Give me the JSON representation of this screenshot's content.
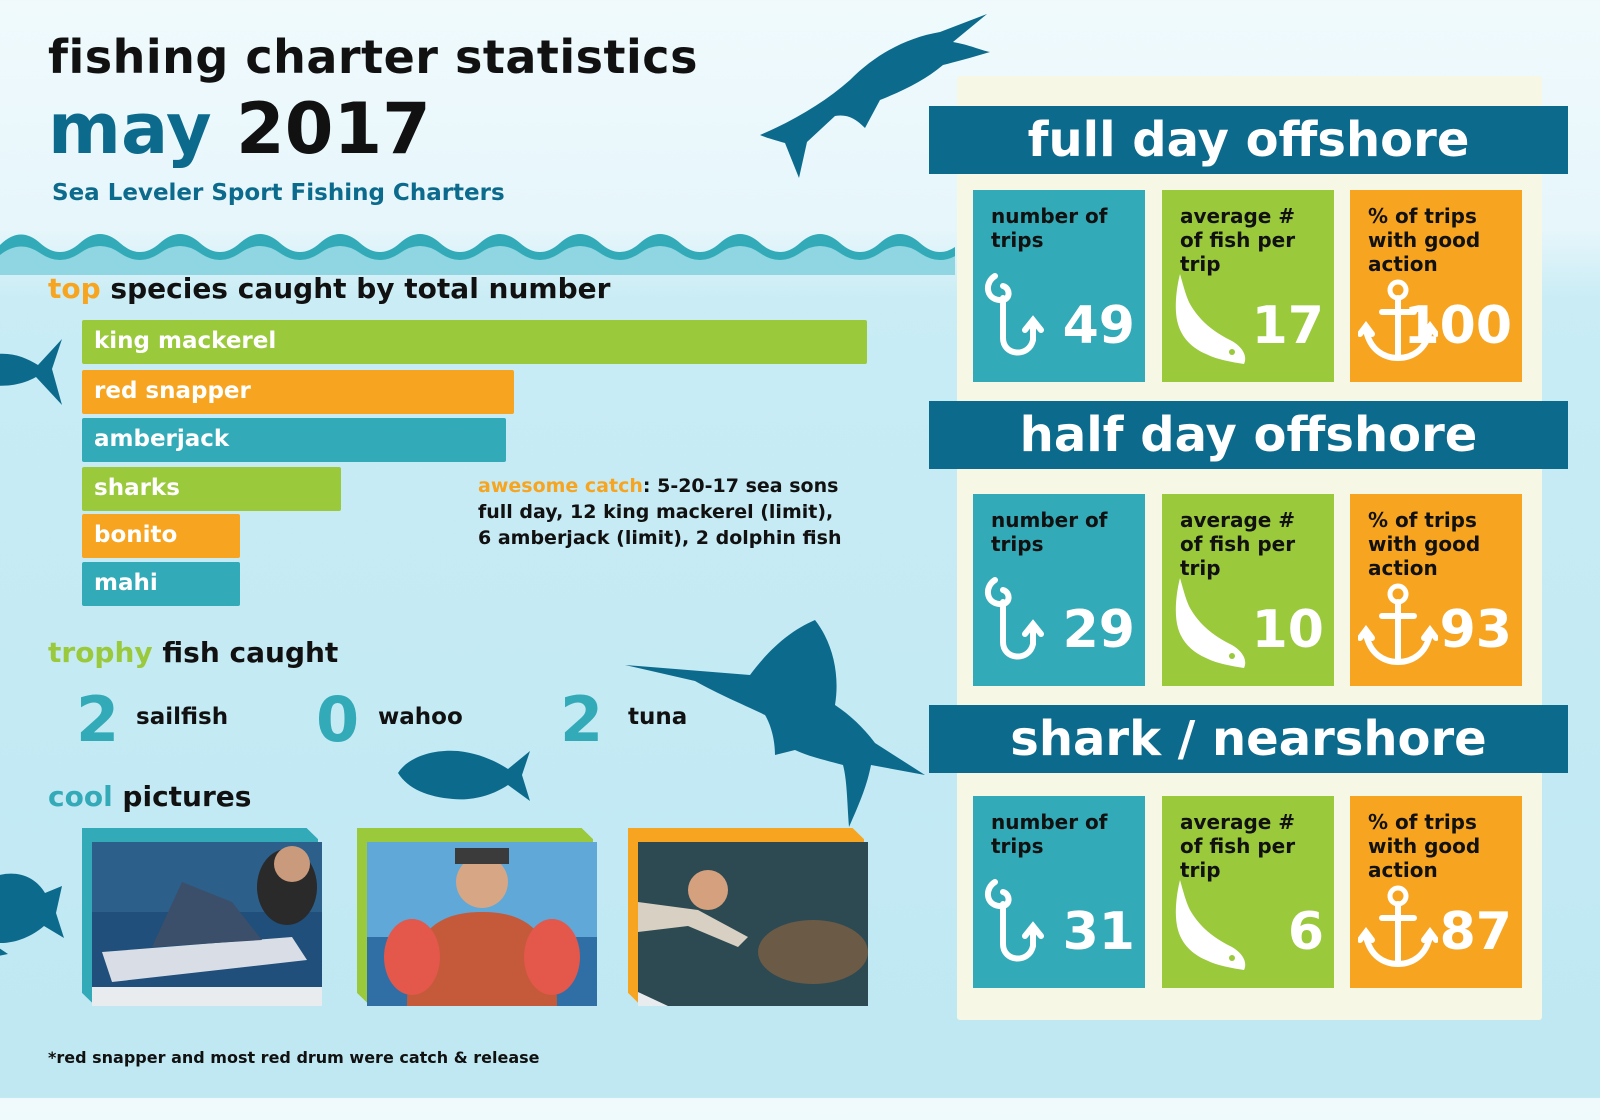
{
  "title": {
    "line1": "fishing charter statistics",
    "month": "may",
    "year": "2017",
    "subtitle": "Sea Leveler Sport Fishing Charters"
  },
  "sections": {
    "top_species": {
      "accent": "top",
      "rest": "species caught by total number"
    },
    "trophy": {
      "accent": "trophy",
      "rest": "fish caught"
    },
    "pictures": {
      "accent": "cool",
      "rest": "pictures"
    }
  },
  "chart_data": {
    "type": "bar",
    "orientation": "horizontal",
    "categories": [
      "king mackerel",
      "red snapper",
      "amberjack",
      "sharks",
      "bonito",
      "mahi"
    ],
    "values": [
      100,
      55,
      54,
      33,
      20,
      20
    ],
    "colors": [
      "#9ac93c",
      "#f7a520",
      "#33aab7",
      "#9ac93c",
      "#f7a520",
      "#33aab7"
    ],
    "title": "top species caught by total number",
    "xlabel": "",
    "ylabel": ""
  },
  "awesome_catch": {
    "label": "awesome catch",
    "line1": ": 5-20-17 sea sons",
    "line2": "full day, 12 king mackerel (limit),",
    "line3": "6 amberjack (limit), 2 dolphin fish"
  },
  "trophy_fish": [
    {
      "count": "2",
      "name": "sailfish"
    },
    {
      "count": "0",
      "name": "wahoo"
    },
    {
      "count": "2",
      "name": "tuna"
    }
  ],
  "photos": [
    {
      "frame_color": "#33aab7",
      "icon": "sailfish-catch-photo"
    },
    {
      "frame_color": "#9ac93c",
      "icon": "red-snapper-catch-photo"
    },
    {
      "frame_color": "#f7a520",
      "icon": "grouper-catch-photo"
    }
  ],
  "footnote": "*red snapper and most red drum were catch & release",
  "charters": [
    {
      "name": "full day offshore",
      "trips_label": "number of trips",
      "trips": "49",
      "avg_label": "average # of fish per trip",
      "avg": "17",
      "pct_label": "% of trips with good action",
      "pct": "100"
    },
    {
      "name": "half day offshore",
      "trips_label": "number of trips",
      "trips": "29",
      "avg_label": "average # of fish per trip",
      "avg": "10",
      "pct_label": "% of trips with good action",
      "pct": "93"
    },
    {
      "name": "shark / nearshore",
      "trips_label": "number of trips",
      "trips": "31",
      "avg_label": "average # of fish per trip",
      "avg": "6",
      "pct_label": "% of trips with good action",
      "pct": "87"
    }
  ],
  "colors": {
    "navy": "#0c6b8c",
    "teal": "#33aab7",
    "green": "#9ac93c",
    "orange": "#f7a520"
  }
}
